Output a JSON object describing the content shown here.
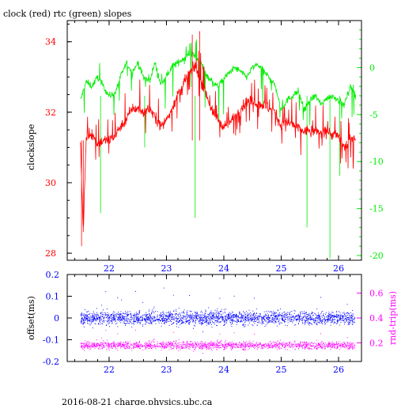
{
  "footer": "2016-08-21 charge.physics.ubc.ca",
  "colors": {
    "clock": "#ff0000",
    "rtc": "#00ee00",
    "offset": "#0000ff",
    "rndtrip": "#ff00ff",
    "frame": "#000000"
  },
  "chart_data": [
    {
      "type": "line",
      "title": "clock (red) rtc (green) slopes",
      "ylabel": "clockslope",
      "xlim": [
        21.27,
        26.4
      ],
      "ylim": [
        27.8,
        34.6
      ],
      "y2lim": [
        -20.5,
        5
      ],
      "xticks": [
        22,
        23,
        24,
        25,
        26
      ],
      "yticks": [
        28,
        30,
        32,
        34
      ],
      "y2ticks": [
        -20,
        -15,
        -10,
        -5,
        0
      ],
      "series": [
        {
          "axis": "left",
          "color": "#ff0000",
          "x": [
            21.5,
            21.55,
            21.6,
            21.7,
            21.8,
            21.9,
            22.0,
            22.1,
            22.2,
            22.3,
            22.4,
            22.5,
            22.6,
            22.7,
            22.8,
            22.9,
            23.0,
            23.1,
            23.2,
            23.3,
            23.4,
            23.5,
            23.6,
            23.7,
            23.8,
            23.9,
            24.0,
            24.1,
            24.2,
            24.3,
            24.4,
            24.5,
            24.6,
            24.7,
            24.8,
            24.9,
            25.0,
            25.1,
            25.2,
            25.3,
            25.4,
            25.5,
            25.6,
            25.7,
            25.8,
            25.9,
            26.0,
            26.1,
            26.2,
            26.3
          ],
          "values": [
            31.2,
            28.6,
            31.3,
            31.4,
            31.1,
            31.2,
            31.2,
            31.35,
            31.6,
            31.8,
            32.1,
            32.1,
            32.0,
            32.1,
            31.9,
            31.6,
            31.8,
            32.1,
            32.5,
            32.8,
            33.1,
            33.3,
            32.9,
            32.5,
            32.0,
            31.8,
            31.6,
            31.7,
            31.9,
            32.1,
            32.3,
            32.3,
            32.25,
            32.2,
            32.1,
            32.0,
            31.6,
            31.7,
            31.65,
            31.55,
            31.45,
            31.5,
            31.45,
            31.4,
            31.5,
            31.35,
            31.3,
            31.0,
            31.2,
            31.3
          ]
        },
        {
          "axis": "right",
          "color": "#00ee00",
          "x": [
            21.5,
            21.6,
            21.7,
            21.8,
            21.9,
            22.0,
            22.1,
            22.2,
            22.3,
            22.4,
            22.5,
            22.6,
            22.7,
            22.8,
            22.9,
            23.0,
            23.1,
            23.2,
            23.3,
            23.4,
            23.5,
            23.6,
            23.7,
            23.8,
            23.9,
            24.0,
            24.1,
            24.2,
            24.3,
            24.4,
            24.5,
            24.6,
            24.7,
            24.8,
            24.9,
            25.0,
            25.1,
            25.2,
            25.3,
            25.4,
            25.5,
            25.6,
            25.7,
            25.8,
            25.9,
            26.0,
            26.1,
            26.2,
            26.3
          ],
          "values": [
            -3.5,
            -1.5,
            -2.0,
            -1.0,
            -2.0,
            -3.0,
            -2.8,
            -1.0,
            0.5,
            -0.5,
            0.5,
            -1.0,
            -1.5,
            0.5,
            -1.8,
            -1.0,
            0.2,
            0.5,
            1.0,
            1.5,
            1.2,
            0.5,
            -0.8,
            -1.5,
            -2.0,
            -1.2,
            -0.5,
            0.0,
            -0.5,
            -1.0,
            0.0,
            0.3,
            -0.5,
            -1.0,
            -2.0,
            -4.5,
            -3.5,
            -3.0,
            -2.5,
            -4.5,
            -3.5,
            -3.0,
            -4.0,
            -3.2,
            -3.0,
            -3.5,
            -4.0,
            -2.0,
            -3.0
          ]
        }
      ]
    },
    {
      "type": "scatter",
      "ylabel": "offset(ms)",
      "y2label": "rnd-trip(ms)",
      "xlim": [
        21.27,
        26.4
      ],
      "ylim": [
        -0.2,
        0.2
      ],
      "y2lim": [
        0.05,
        0.75
      ],
      "xticks": [
        22,
        23,
        24,
        25,
        26
      ],
      "yticks": [
        -0.2,
        -0.1,
        0,
        0.1,
        0.2
      ],
      "y2ticks": [
        0.2,
        0.4,
        0.6
      ],
      "series": [
        {
          "axis": "left",
          "color": "#0000ff",
          "center": 0.0,
          "spread": 0.03,
          "xrange": [
            21.5,
            26.28
          ]
        },
        {
          "axis": "right",
          "color": "#ff00ff",
          "center": 0.18,
          "spread": 0.03,
          "xrange": [
            21.5,
            26.28
          ]
        }
      ]
    }
  ]
}
